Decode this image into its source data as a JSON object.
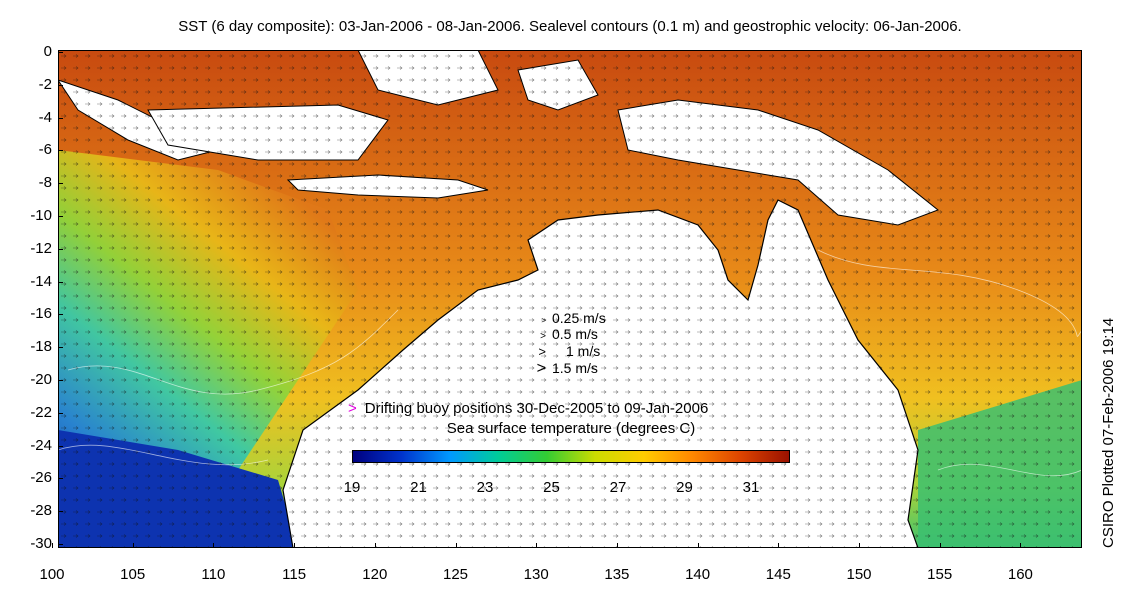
{
  "title": "SST (6 day composite): 03-Jan-2006 - 08-Jan-2006. Sealevel contours (0.1 m) and geostrophic velocity: 06-Jan-2006.",
  "side_credit": "CSIRO Plotted 07-Feb-2006 19:14",
  "y_axis": {
    "ticks": [
      "0",
      "-2",
      "-4",
      "-6",
      "-8",
      "-10",
      "-12",
      "-14",
      "-16",
      "-18",
      "-20",
      "-22",
      "-24",
      "-26",
      "-28",
      "-30"
    ]
  },
  "x_axis": {
    "ticks": [
      "100",
      "105",
      "110",
      "115",
      "120",
      "125",
      "130",
      "135",
      "140",
      "145",
      "150",
      "155",
      "160"
    ]
  },
  "velocity_legend": [
    {
      "arrow": ">",
      "label": "0.25 m/s"
    },
    {
      "arrow": ">",
      "label": "0.5 m/s"
    },
    {
      "arrow": ">",
      "label": "1 m/s"
    },
    {
      "arrow": ">",
      "label": "1.5 m/s"
    }
  ],
  "buoy_legend": {
    "glyph": ">",
    "label": "Drifting buoy positions 30-Dec-2005 to 09-Jan-2006"
  },
  "colorbar": {
    "title": "Sea surface temperature (degrees C)",
    "labels": [
      "19",
      "21",
      "23",
      "25",
      "27",
      "29",
      "31"
    ],
    "colors": [
      "#00007f",
      "#0033cc",
      "#0099ff",
      "#00cc99",
      "#33cc33",
      "#ccdd00",
      "#ffcc00",
      "#ff8800",
      "#dd4400",
      "#991100"
    ]
  }
}
